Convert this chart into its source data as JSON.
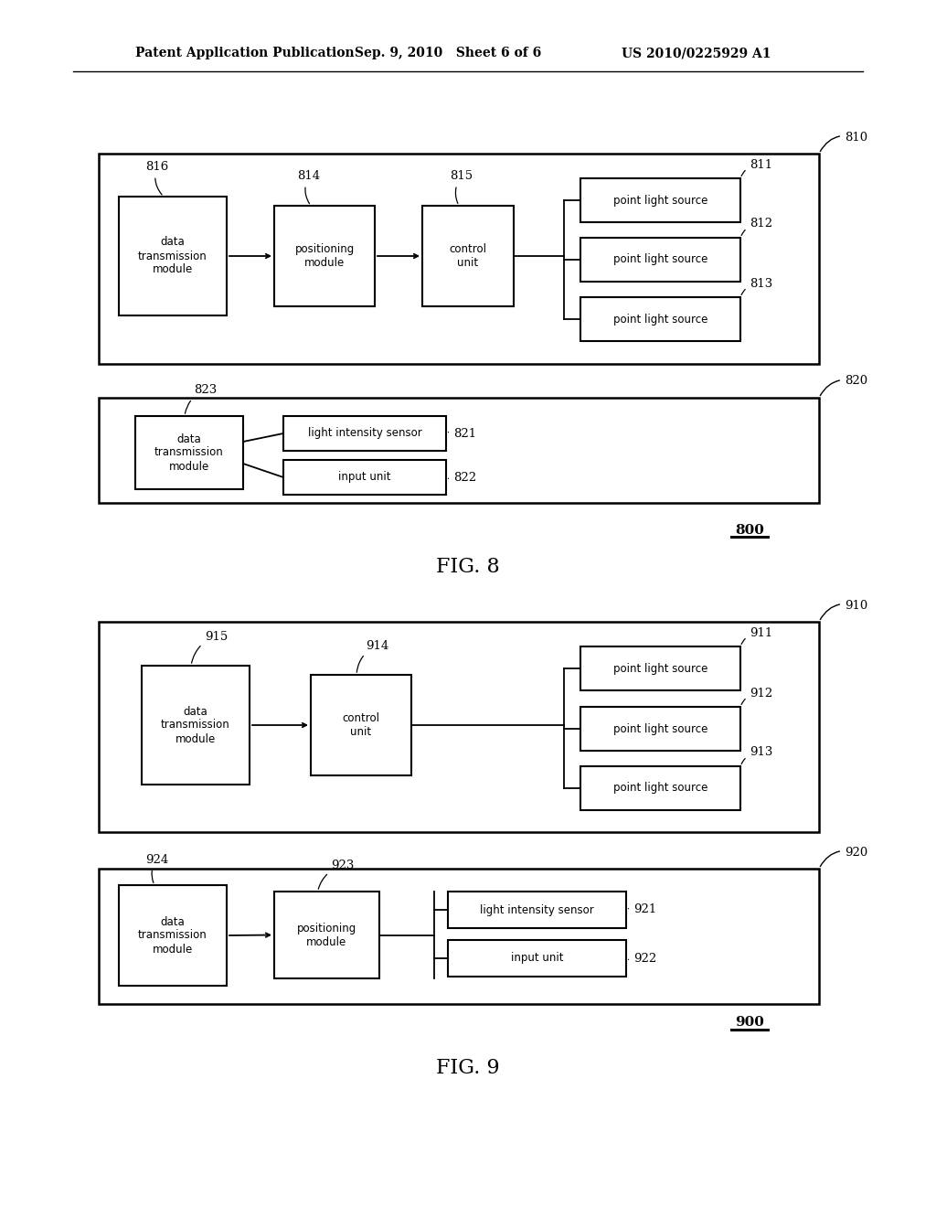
{
  "header_left": "Patent Application Publication",
  "header_mid": "Sep. 9, 2010   Sheet 6 of 6",
  "header_right": "US 2010/0225929 A1",
  "bg_color": "#ffffff",
  "fig8_label": "FIG. 8",
  "fig9_label": "FIG. 9",
  "fig8_system_label": "800",
  "fig9_system_label": "900",
  "fig8": {
    "box810_label": "810",
    "box811_label": "811",
    "box812_label": "812",
    "box813_label": "813",
    "box814_label": "814",
    "box815_label": "815",
    "box816_label": "816",
    "b816_text": "data\ntransmission\nmodule",
    "b814_text": "positioning\nmodule",
    "b815_text": "control\nunit",
    "b811_text": "point light source",
    "b812_text": "point light source",
    "b813_text": "point light source",
    "box820_label": "820",
    "box821_label": "821",
    "box822_label": "822",
    "box823_label": "823",
    "b823_text": "data\ntransmission\nmodule",
    "b821_text": "light intensity sensor",
    "b822_text": "input unit"
  },
  "fig9": {
    "box910_label": "910",
    "box911_label": "911",
    "box912_label": "912",
    "box913_label": "913",
    "box914_label": "914",
    "box915_label": "915",
    "b915_text": "data\ntransmission\nmodule",
    "b914_text": "control\nunit",
    "b911_text": "point light source",
    "b912_text": "point light source",
    "b913_text": "point light source",
    "box920_label": "920",
    "box921_label": "921",
    "box922_label": "922",
    "box923_label": "923",
    "box924_label": "924",
    "b924_text": "data\ntransmission\nmodule",
    "b923_text": "positioning\nmodule",
    "b921_text": "light intensity sensor",
    "b922_text": "input unit"
  }
}
